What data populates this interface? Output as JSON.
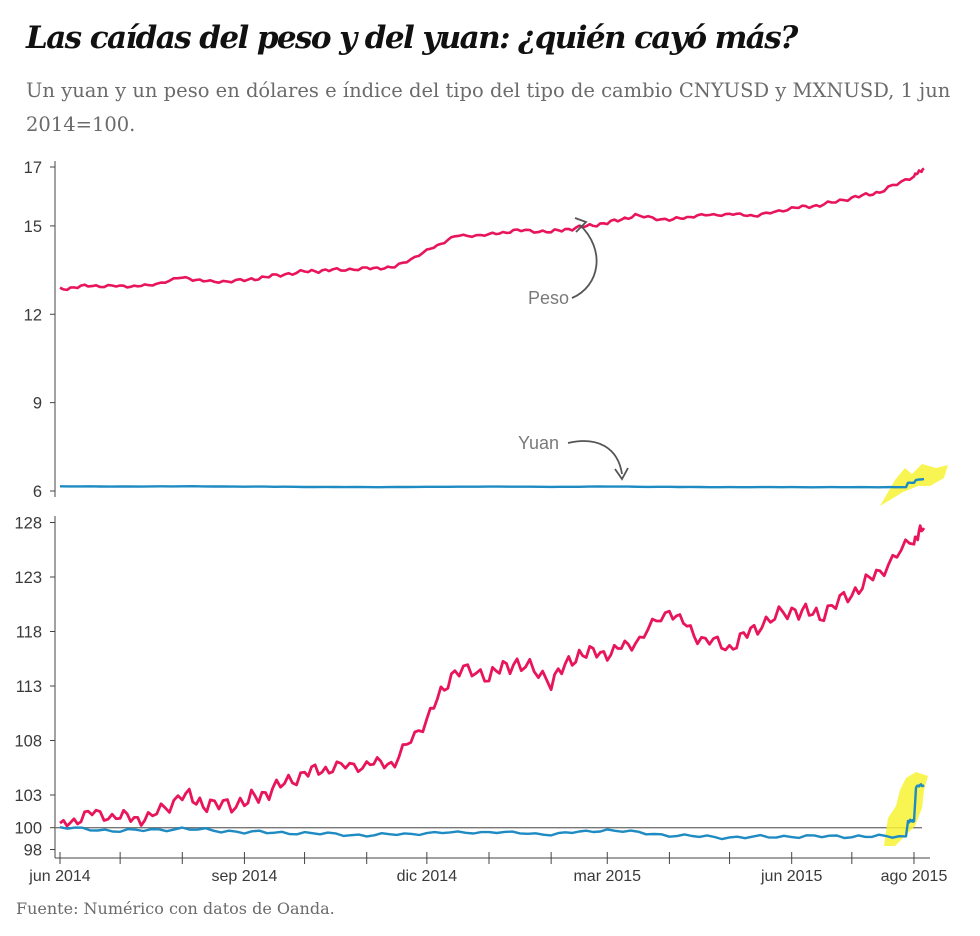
{
  "title": "Las caídas del peso y del yuan: ¿quién cayó más?",
  "subtitle": "Un yuan y un peso en dólares e índice del tipo del tipo de cambio CNYUSD y MXNUSD, 1 jun 2014=100.",
  "source": "Fuente: Numérico con datos de Oanda.",
  "colors": {
    "peso": "#e8155a",
    "yuan": "#1e8bc3",
    "highlight": "#f7f233",
    "annotation": "#555555"
  },
  "chart_data": [
    {
      "type": "line",
      "ylim": [
        6,
        17
      ],
      "yticks": [
        "17",
        "15",
        "12",
        "9",
        "6"
      ],
      "yticks_values": [
        17,
        15,
        12,
        9,
        6
      ],
      "annotations": [
        "Peso",
        "Yuan"
      ],
      "series": [
        {
          "name": "Peso",
          "x": [
            "2014-06-01",
            "2014-06-15",
            "2014-07-01",
            "2014-07-15",
            "2014-08-01",
            "2014-08-15",
            "2014-09-01",
            "2014-09-15",
            "2014-10-01",
            "2014-10-15",
            "2014-11-01",
            "2014-11-15",
            "2014-12-01",
            "2014-12-15",
            "2015-01-01",
            "2015-01-15",
            "2015-02-01",
            "2015-02-15",
            "2015-03-01",
            "2015-03-15",
            "2015-04-01",
            "2015-04-15",
            "2015-05-01",
            "2015-05-15",
            "2015-06-01",
            "2015-06-15",
            "2015-07-01",
            "2015-07-15",
            "2015-08-01",
            "2015-08-06"
          ],
          "y": [
            12.85,
            12.97,
            12.95,
            12.97,
            13.25,
            13.1,
            13.15,
            13.3,
            13.45,
            13.5,
            13.55,
            13.6,
            14.15,
            14.65,
            14.7,
            14.85,
            14.8,
            14.95,
            15.1,
            15.35,
            15.2,
            15.35,
            15.4,
            15.35,
            15.6,
            15.7,
            15.95,
            16.15,
            16.7,
            16.95
          ]
        },
        {
          "name": "Yuan",
          "x": [
            "2014-06-01",
            "2014-07-01",
            "2014-08-01",
            "2014-09-01",
            "2014-10-01",
            "2014-11-01",
            "2014-12-01",
            "2015-01-01",
            "2015-02-01",
            "2015-03-01",
            "2015-04-01",
            "2015-05-01",
            "2015-06-01",
            "2015-07-01",
            "2015-07-28",
            "2015-07-29",
            "2015-08-01",
            "2015-08-02",
            "2015-08-06"
          ],
          "y": [
            6.16,
            6.15,
            6.16,
            6.15,
            6.14,
            6.13,
            6.14,
            6.15,
            6.14,
            6.15,
            6.14,
            6.13,
            6.13,
            6.13,
            6.13,
            6.28,
            6.28,
            6.38,
            6.4
          ]
        }
      ]
    },
    {
      "type": "line",
      "ylim": [
        98,
        128
      ],
      "yticks": [
        "128",
        "123",
        "118",
        "113",
        "108",
        "103",
        "100",
        "98"
      ],
      "yticks_values": [
        128,
        123,
        118,
        113,
        108,
        103,
        100,
        98
      ],
      "reference_line": 100,
      "xticks": [
        "jun 2014",
        "sep 2014",
        "dic 2014",
        "mar 2015",
        "jun 2015",
        "ago 2015"
      ],
      "xticks_dates": [
        "2014-06-01",
        "2014-09-01",
        "2014-12-01",
        "2015-03-01",
        "2015-06-01",
        "2015-08-01"
      ],
      "series": [
        {
          "name": "Peso",
          "x": [
            "2014-06-01",
            "2014-06-15",
            "2014-07-01",
            "2014-07-15",
            "2014-08-01",
            "2014-08-15",
            "2014-09-01",
            "2014-09-15",
            "2014-10-01",
            "2014-10-15",
            "2014-11-01",
            "2014-11-15",
            "2014-12-01",
            "2014-12-15",
            "2015-01-01",
            "2015-01-15",
            "2015-02-01",
            "2015-02-15",
            "2015-03-01",
            "2015-03-15",
            "2015-04-01",
            "2015-04-15",
            "2015-05-01",
            "2015-05-15",
            "2015-06-01",
            "2015-06-15",
            "2015-07-01",
            "2015-07-15",
            "2015-08-01",
            "2015-08-06"
          ],
          "y": [
            100.0,
            101.3,
            101.0,
            100.8,
            103.0,
            102.0,
            102.3,
            103.5,
            105.0,
            105.5,
            105.8,
            106.0,
            110.0,
            114.5,
            114.0,
            115.2,
            113.5,
            116.0,
            116.0,
            117.0,
            120.0,
            117.5,
            116.5,
            118.5,
            120.0,
            119.5,
            121.5,
            123.5,
            126.5,
            127.5
          ]
        },
        {
          "name": "Yuan",
          "x": [
            "2014-06-01",
            "2014-07-01",
            "2014-08-01",
            "2014-09-01",
            "2014-10-01",
            "2014-11-01",
            "2014-12-01",
            "2015-01-01",
            "2015-02-01",
            "2015-03-01",
            "2015-04-01",
            "2015-05-01",
            "2015-06-01",
            "2015-07-01",
            "2015-07-28",
            "2015-07-29",
            "2015-08-01",
            "2015-08-02",
            "2015-08-06"
          ],
          "y": [
            100.0,
            99.7,
            99.9,
            99.6,
            99.5,
            99.3,
            99.5,
            99.6,
            99.4,
            99.8,
            99.3,
            99.1,
            99.2,
            99.2,
            99.2,
            100.6,
            100.6,
            103.8,
            103.9
          ]
        }
      ]
    }
  ]
}
